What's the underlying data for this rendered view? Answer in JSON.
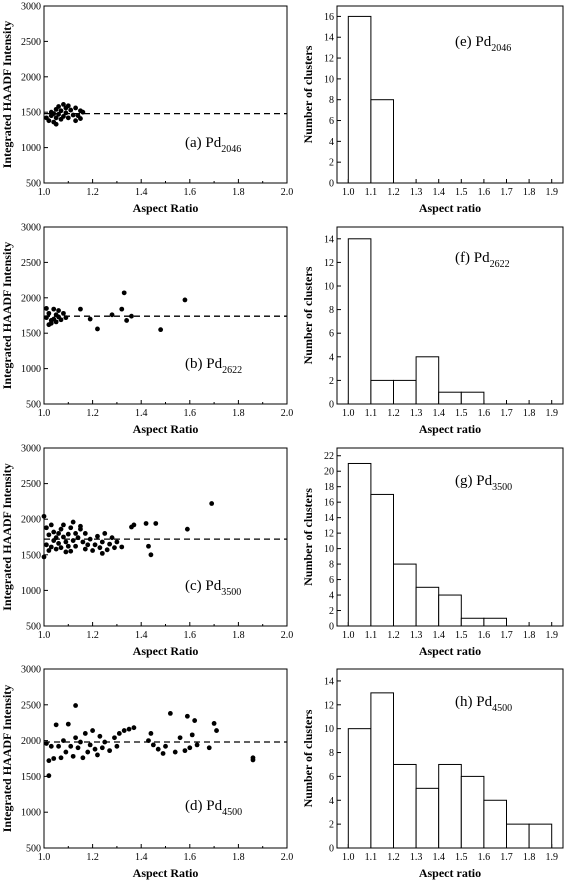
{
  "chart_data": [
    {
      "id": "a",
      "type": "scatter",
      "label": "(a) Pd",
      "label_sub": "2046",
      "xlabel": "Aspect Ratio",
      "ylabel": "Integrated HAADF Intensity",
      "xlim": [
        1.0,
        2.0
      ],
      "ylim": [
        500,
        3000
      ],
      "xticks": [
        1.0,
        1.2,
        1.4,
        1.6,
        1.8,
        2.0
      ],
      "yticks": [
        500,
        1000,
        1500,
        2000,
        2500,
        3000
      ],
      "mean_line": 1480,
      "points": [
        [
          1.01,
          1420
        ],
        [
          1.02,
          1380
        ],
        [
          1.03,
          1450
        ],
        [
          1.03,
          1500
        ],
        [
          1.04,
          1360
        ],
        [
          1.04,
          1480
        ],
        [
          1.05,
          1540
        ],
        [
          1.05,
          1420
        ],
        [
          1.05,
          1330
        ],
        [
          1.06,
          1580
        ],
        [
          1.06,
          1470
        ],
        [
          1.07,
          1400
        ],
        [
          1.07,
          1520
        ],
        [
          1.08,
          1610
        ],
        [
          1.08,
          1440
        ],
        [
          1.09,
          1490
        ],
        [
          1.09,
          1560
        ],
        [
          1.1,
          1420
        ],
        [
          1.1,
          1590
        ],
        [
          1.11,
          1530
        ],
        [
          1.12,
          1460
        ],
        [
          1.13,
          1560
        ],
        [
          1.13,
          1380
        ],
        [
          1.14,
          1450
        ],
        [
          1.15,
          1520
        ],
        [
          1.15,
          1410
        ],
        [
          1.16,
          1500
        ]
      ]
    },
    {
      "id": "b",
      "type": "scatter",
      "label": "(b) Pd",
      "label_sub": "2622",
      "xlabel": "Aspect Ratio",
      "ylabel": "Integrated HAADF Intensity",
      "xlim": [
        1.0,
        2.0
      ],
      "ylim": [
        500,
        3000
      ],
      "xticks": [
        1.0,
        1.2,
        1.4,
        1.6,
        1.8,
        2.0
      ],
      "yticks": [
        500,
        1000,
        1500,
        2000,
        2500,
        3000
      ],
      "mean_line": 1740,
      "points": [
        [
          1.01,
          1850
        ],
        [
          1.01,
          1720
        ],
        [
          1.02,
          1620
        ],
        [
          1.02,
          1780
        ],
        [
          1.03,
          1680
        ],
        [
          1.03,
          1640
        ],
        [
          1.04,
          1840
        ],
        [
          1.04,
          1700
        ],
        [
          1.05,
          1660
        ],
        [
          1.05,
          1760
        ],
        [
          1.06,
          1820
        ],
        [
          1.06,
          1730
        ],
        [
          1.07,
          1690
        ],
        [
          1.08,
          1780
        ],
        [
          1.09,
          1720
        ],
        [
          1.15,
          1840
        ],
        [
          1.19,
          1700
        ],
        [
          1.22,
          1560
        ],
        [
          1.28,
          1760
        ],
        [
          1.32,
          1840
        ],
        [
          1.33,
          2070
        ],
        [
          1.34,
          1680
        ],
        [
          1.36,
          1740
        ],
        [
          1.48,
          1550
        ],
        [
          1.58,
          1970
        ]
      ]
    },
    {
      "id": "c",
      "type": "scatter",
      "label": "(c) Pd",
      "label_sub": "3500",
      "xlabel": "Aspect Ratio",
      "ylabel": "Integrated HAADF Intensity",
      "xlim": [
        1.0,
        2.0
      ],
      "ylim": [
        500,
        3000
      ],
      "xticks": [
        1.0,
        1.2,
        1.4,
        1.6,
        1.8,
        2.0
      ],
      "yticks": [
        500,
        1000,
        1500,
        2000,
        2500,
        3000
      ],
      "mean_line": 1720,
      "points": [
        [
          1.0,
          2040
        ],
        [
          1.0,
          1470
        ],
        [
          1.01,
          1880
        ],
        [
          1.01,
          1640
        ],
        [
          1.02,
          1560
        ],
        [
          1.02,
          1780
        ],
        [
          1.03,
          1920
        ],
        [
          1.03,
          1610
        ],
        [
          1.04,
          1700
        ],
        [
          1.04,
          1820
        ],
        [
          1.05,
          1580
        ],
        [
          1.05,
          1740
        ],
        [
          1.06,
          1660
        ],
        [
          1.06,
          1800
        ],
        [
          1.07,
          1860
        ],
        [
          1.07,
          1600
        ],
        [
          1.08,
          1750
        ],
        [
          1.08,
          1920
        ],
        [
          1.09,
          1540
        ],
        [
          1.09,
          1680
        ],
        [
          1.1,
          1790
        ],
        [
          1.1,
          1620
        ],
        [
          1.11,
          1880
        ],
        [
          1.11,
          1550
        ],
        [
          1.12,
          1700
        ],
        [
          1.12,
          1960
        ],
        [
          1.13,
          1620
        ],
        [
          1.13,
          1800
        ],
        [
          1.14,
          1740
        ],
        [
          1.15,
          1860
        ],
        [
          1.15,
          1900
        ],
        [
          1.16,
          1680
        ],
        [
          1.17,
          1580
        ],
        [
          1.17,
          1800
        ],
        [
          1.18,
          1640
        ],
        [
          1.19,
          1720
        ],
        [
          1.2,
          1560
        ],
        [
          1.21,
          1640
        ],
        [
          1.22,
          1760
        ],
        [
          1.23,
          1600
        ],
        [
          1.24,
          1520
        ],
        [
          1.24,
          1680
        ],
        [
          1.25,
          1800
        ],
        [
          1.26,
          1570
        ],
        [
          1.27,
          1650
        ],
        [
          1.28,
          1740
        ],
        [
          1.29,
          1600
        ],
        [
          1.3,
          1680
        ],
        [
          1.32,
          1610
        ],
        [
          1.36,
          1890
        ],
        [
          1.37,
          1920
        ],
        [
          1.42,
          1940
        ],
        [
          1.43,
          1620
        ],
        [
          1.44,
          1500
        ],
        [
          1.46,
          1940
        ],
        [
          1.59,
          1860
        ],
        [
          1.69,
          2220
        ]
      ]
    },
    {
      "id": "d",
      "type": "scatter",
      "label": "(d) Pd",
      "label_sub": "4500",
      "xlabel": "Aspect Ratio",
      "ylabel": "Integrated HAADF Intensity",
      "xlim": [
        1.0,
        2.0
      ],
      "ylim": [
        500,
        3000
      ],
      "xticks": [
        1.0,
        1.2,
        1.4,
        1.6,
        1.8,
        2.0
      ],
      "yticks": [
        500,
        1000,
        1500,
        2000,
        2500,
        3000
      ],
      "mean_line": 1980,
      "points": [
        [
          1.01,
          1960
        ],
        [
          1.02,
          1720
        ],
        [
          1.02,
          1510
        ],
        [
          1.03,
          1920
        ],
        [
          1.04,
          1750
        ],
        [
          1.05,
          2220
        ],
        [
          1.06,
          1920
        ],
        [
          1.07,
          1760
        ],
        [
          1.08,
          2000
        ],
        [
          1.09,
          1840
        ],
        [
          1.1,
          2230
        ],
        [
          1.11,
          1920
        ],
        [
          1.12,
          1780
        ],
        [
          1.13,
          2040
        ],
        [
          1.13,
          2490
        ],
        [
          1.14,
          1900
        ],
        [
          1.15,
          1980
        ],
        [
          1.16,
          1760
        ],
        [
          1.17,
          2100
        ],
        [
          1.18,
          1840
        ],
        [
          1.19,
          1940
        ],
        [
          1.2,
          2140
        ],
        [
          1.21,
          1880
        ],
        [
          1.22,
          1800
        ],
        [
          1.23,
          2060
        ],
        [
          1.24,
          1900
        ],
        [
          1.25,
          1980
        ],
        [
          1.27,
          1860
        ],
        [
          1.29,
          2040
        ],
        [
          1.3,
          1920
        ],
        [
          1.31,
          2100
        ],
        [
          1.33,
          2140
        ],
        [
          1.35,
          2160
        ],
        [
          1.37,
          2180
        ],
        [
          1.43,
          2000
        ],
        [
          1.44,
          2100
        ],
        [
          1.45,
          1940
        ],
        [
          1.47,
          1880
        ],
        [
          1.49,
          1820
        ],
        [
          1.5,
          1920
        ],
        [
          1.52,
          2380
        ],
        [
          1.54,
          1840
        ],
        [
          1.56,
          2040
        ],
        [
          1.58,
          1860
        ],
        [
          1.59,
          2340
        ],
        [
          1.6,
          1900
        ],
        [
          1.61,
          2080
        ],
        [
          1.62,
          2280
        ],
        [
          1.63,
          1940
        ],
        [
          1.68,
          1900
        ],
        [
          1.7,
          2240
        ],
        [
          1.71,
          2140
        ],
        [
          1.86,
          1760
        ],
        [
          1.86,
          1730
        ]
      ]
    },
    {
      "id": "e",
      "type": "bar",
      "label": "(e) Pd",
      "label_sub": "2046",
      "xlabel": "Aspect ratio",
      "ylabel": "Number of clusters",
      "bin_edges": [
        1.0,
        1.1,
        1.2,
        1.3,
        1.4,
        1.5,
        1.6,
        1.7,
        1.8,
        1.9
      ],
      "values": [
        16,
        8,
        0,
        0,
        0,
        0,
        0,
        0,
        0
      ],
      "ylim": [
        0,
        17
      ],
      "yticks": [
        0,
        2,
        4,
        6,
        8,
        10,
        12,
        14,
        16
      ],
      "xlim": [
        0.95,
        1.95
      ],
      "xticks": [
        1.0,
        1.1,
        1.2,
        1.3,
        1.4,
        1.5,
        1.6,
        1.7,
        1.8,
        1.9
      ]
    },
    {
      "id": "f",
      "type": "bar",
      "label": "(f) Pd",
      "label_sub": "2622",
      "xlabel": "Aspect ratio",
      "ylabel": "Number of clusters",
      "bin_edges": [
        1.0,
        1.1,
        1.2,
        1.3,
        1.4,
        1.5,
        1.6,
        1.7,
        1.8,
        1.9
      ],
      "values": [
        14,
        2,
        2,
        4,
        1,
        1,
        0,
        0,
        0
      ],
      "ylim": [
        0,
        15
      ],
      "yticks": [
        0,
        2,
        4,
        6,
        8,
        10,
        12,
        14
      ],
      "xlim": [
        0.95,
        1.95
      ],
      "xticks": [
        1.0,
        1.1,
        1.2,
        1.3,
        1.4,
        1.5,
        1.6,
        1.7,
        1.8,
        1.9
      ]
    },
    {
      "id": "g",
      "type": "bar",
      "label": "(g) Pd",
      "label_sub": "3500",
      "xlabel": "Aspect ratio",
      "ylabel": "Number of clusters",
      "bin_edges": [
        1.0,
        1.1,
        1.2,
        1.3,
        1.4,
        1.5,
        1.6,
        1.7,
        1.8,
        1.9
      ],
      "values": [
        21,
        17,
        8,
        5,
        4,
        1,
        1,
        0,
        0
      ],
      "ylim": [
        0,
        23
      ],
      "yticks": [
        0,
        2,
        4,
        6,
        8,
        10,
        12,
        14,
        16,
        18,
        20,
        22
      ],
      "xlim": [
        0.95,
        1.95
      ],
      "xticks": [
        1.0,
        1.1,
        1.2,
        1.3,
        1.4,
        1.5,
        1.6,
        1.7,
        1.8,
        1.9
      ]
    },
    {
      "id": "h",
      "type": "bar",
      "label": "(h) Pd",
      "label_sub": "4500",
      "xlabel": "Aspect ratio",
      "ylabel": "Number of clusters",
      "bin_edges": [
        1.0,
        1.1,
        1.2,
        1.3,
        1.4,
        1.5,
        1.6,
        1.7,
        1.8,
        1.9
      ],
      "values": [
        10,
        13,
        7,
        5,
        7,
        6,
        4,
        2,
        2
      ],
      "ylim": [
        0,
        15
      ],
      "yticks": [
        0,
        2,
        4,
        6,
        8,
        10,
        12,
        14
      ],
      "xlim": [
        0.95,
        1.95
      ],
      "xticks": [
        1.0,
        1.1,
        1.2,
        1.3,
        1.4,
        1.5,
        1.6,
        1.7,
        1.8,
        1.9
      ]
    }
  ]
}
